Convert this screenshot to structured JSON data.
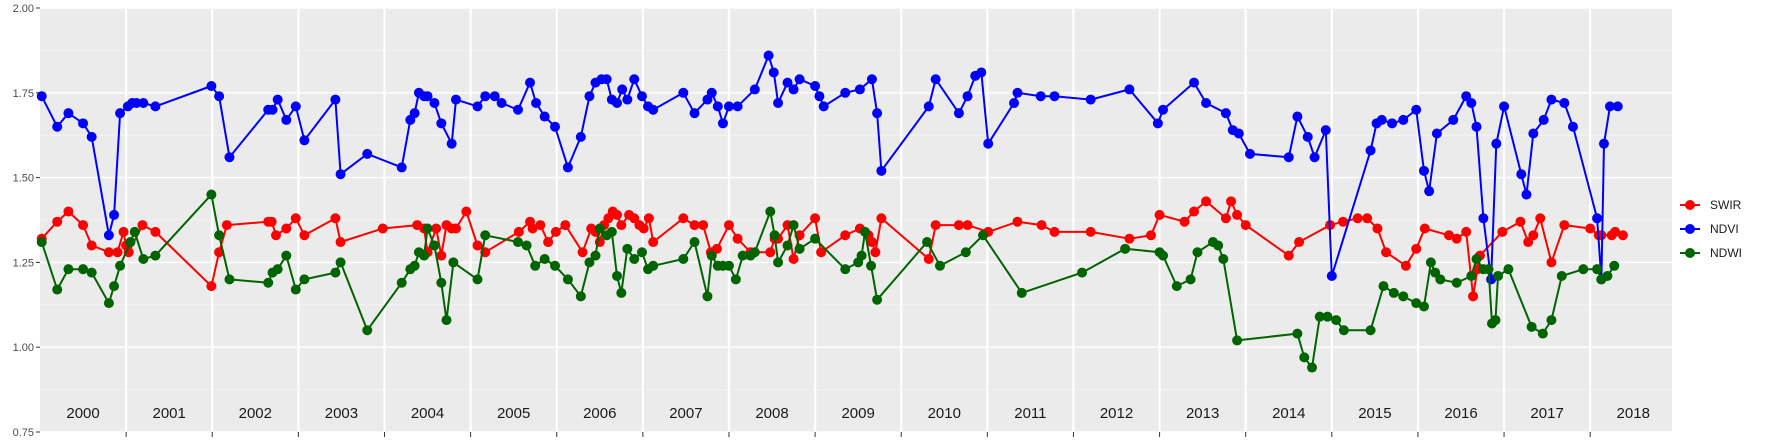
{
  "chart_data": {
    "type": "line",
    "title": "",
    "xlabel": "",
    "ylabel": "",
    "xlim": [
      2000.0,
      2018.95
    ],
    "ylim": [
      0.75,
      2.0
    ],
    "yticks": [
      0.75,
      1.0,
      1.25,
      1.5,
      1.75,
      2.0
    ],
    "ytick_labels": [
      "0.75",
      "1.00",
      "1.25",
      "1.50",
      "1.75",
      "2.00"
    ],
    "year_labels": [
      "2000",
      "2001",
      "2002",
      "2003",
      "2004",
      "2005",
      "2006",
      "2007",
      "2008",
      "2009",
      "2010",
      "2011",
      "2012",
      "2013",
      "2014",
      "2015",
      "2016",
      "2017",
      "2018"
    ],
    "grid": true,
    "legend_position": "right",
    "series": [
      {
        "name": "SWIR",
        "color": "#ff0000",
        "x": [
          2000.02,
          2000.2,
          2000.33,
          2000.5,
          2000.6,
          2000.8,
          2000.9,
          2000.97,
          2001.0,
          2001.03,
          2001.19,
          2001.34,
          2001.99,
          2002.08,
          2002.17,
          2002.65,
          2002.69,
          2002.74,
          2002.86,
          2002.97,
          2003.07,
          2003.43,
          2003.49,
          2003.98,
          2004.38,
          2004.46,
          2004.5,
          2004.6,
          2004.66,
          2004.72,
          2004.78,
          2004.83,
          2004.95,
          2005.08,
          2005.17,
          2005.56,
          2005.69,
          2005.72,
          2005.81,
          2005.9,
          2005.99,
          2006.1,
          2006.3,
          2006.4,
          2006.45,
          2006.5,
          2006.55,
          2006.6,
          2006.65,
          2006.7,
          2006.75,
          2006.84,
          2006.9,
          2006.96,
          2007.01,
          2007.07,
          2007.12,
          2007.47,
          2007.6,
          2007.7,
          2007.79,
          2007.86,
          2008.0,
          2008.1,
          2008.25,
          2008.48,
          2008.53,
          2008.57,
          2008.68,
          2008.75,
          2008.82,
          2009.0,
          2009.07,
          2009.35,
          2009.52,
          2009.62,
          2009.66,
          2009.7,
          2009.77,
          2010.32,
          2010.4,
          2010.67,
          2010.77,
          2011.01,
          2011.35,
          2011.63,
          2011.78,
          2012.2,
          2012.65,
          2012.9,
          2013.0,
          2013.29,
          2013.4,
          2013.54,
          2013.77,
          2013.83,
          2013.9,
          2014.0,
          2014.5,
          2014.62,
          2014.98,
          2015.13,
          2015.3,
          2015.41,
          2015.53,
          2015.63,
          2015.86,
          2015.98,
          2016.08,
          2016.36,
          2016.45,
          2016.56,
          2016.64,
          2016.69,
          2016.72,
          2016.98,
          2017.19,
          2017.28,
          2017.34,
          2017.42,
          2017.55,
          2017.7,
          2018.0,
          2018.1,
          2018.13,
          2018.25,
          2018.29,
          2018.38
        ],
        "values": [
          1.32,
          1.37,
          1.4,
          1.36,
          1.3,
          1.28,
          1.28,
          1.34,
          1.3,
          1.28,
          1.36,
          1.34,
          1.18,
          1.28,
          1.36,
          1.37,
          1.37,
          1.33,
          1.35,
          1.38,
          1.33,
          1.38,
          1.31,
          1.35,
          1.36,
          1.35,
          1.28,
          1.35,
          1.27,
          1.36,
          1.35,
          1.35,
          1.4,
          1.3,
          1.28,
          1.34,
          1.37,
          1.35,
          1.36,
          1.31,
          1.34,
          1.36,
          1.28,
          1.35,
          1.34,
          1.31,
          1.36,
          1.38,
          1.4,
          1.39,
          1.36,
          1.39,
          1.38,
          1.36,
          1.35,
          1.38,
          1.31,
          1.38,
          1.36,
          1.36,
          1.28,
          1.29,
          1.36,
          1.32,
          1.28,
          1.28,
          1.32,
          1.32,
          1.36,
          1.26,
          1.33,
          1.38,
          1.28,
          1.33,
          1.35,
          1.33,
          1.31,
          1.28,
          1.38,
          1.26,
          1.36,
          1.36,
          1.36,
          1.34,
          1.37,
          1.36,
          1.34,
          1.34,
          1.32,
          1.33,
          1.39,
          1.37,
          1.4,
          1.43,
          1.38,
          1.43,
          1.39,
          1.36,
          1.27,
          1.31,
          1.36,
          1.37,
          1.38,
          1.38,
          1.35,
          1.28,
          1.24,
          1.29,
          1.35,
          1.33,
          1.32,
          1.34,
          1.15,
          1.23,
          1.27,
          1.34,
          1.37,
          1.31,
          1.33,
          1.38,
          1.25,
          1.36,
          1.35,
          1.33,
          1.33,
          1.33,
          1.34,
          1.33
        ],
        "values_note": ""
      },
      {
        "name": "NDVI",
        "color": "#0000ff",
        "x": [
          2000.02,
          2000.2,
          2000.33,
          2000.5,
          2000.6,
          2000.8,
          2000.86,
          2000.93,
          2001.02,
          2001.07,
          2001.12,
          2001.2,
          2001.34,
          2001.99,
          2002.08,
          2002.2,
          2002.65,
          2002.7,
          2002.76,
          2002.86,
          2002.97,
          2003.07,
          2003.43,
          2003.49,
          2003.8,
          2004.2,
          2004.3,
          2004.35,
          2004.4,
          2004.46,
          2004.5,
          2004.58,
          2004.66,
          2004.78,
          2004.83,
          2005.08,
          2005.17,
          2005.28,
          2005.36,
          2005.55,
          2005.69,
          2005.76,
          2005.86,
          2005.98,
          2006.13,
          2006.28,
          2006.38,
          2006.45,
          2006.52,
          2006.58,
          2006.64,
          2006.7,
          2006.76,
          2006.82,
          2006.9,
          2006.99,
          2007.06,
          2007.12,
          2007.47,
          2007.6,
          2007.75,
          2007.8,
          2007.87,
          2007.93,
          2008.0,
          2008.1,
          2008.3,
          2008.46,
          2008.52,
          2008.57,
          2008.68,
          2008.75,
          2008.82,
          2009.0,
          2009.05,
          2009.1,
          2009.35,
          2009.52,
          2009.66,
          2009.72,
          2009.77,
          2010.32,
          2010.4,
          2010.67,
          2010.77,
          2010.86,
          2010.93,
          2011.01,
          2011.31,
          2011.35,
          2011.62,
          2011.78,
          2012.2,
          2012.65,
          2012.98,
          2013.04,
          2013.4,
          2013.54,
          2013.77,
          2013.85,
          2013.92,
          2014.05,
          2014.5,
          2014.6,
          2014.72,
          2014.8,
          2014.93,
          2015.0,
          2015.45,
          2015.52,
          2015.58,
          2015.7,
          2015.83,
          2015.98,
          2016.07,
          2016.13,
          2016.22,
          2016.41,
          2016.56,
          2016.62,
          2016.68,
          2016.76,
          2016.85,
          2016.91,
          2017.0,
          2017.2,
          2017.26,
          2017.34,
          2017.46,
          2017.55,
          2017.7,
          2017.8,
          2018.08,
          2018.13,
          2018.16,
          2018.23,
          2018.32
        ],
        "values": [
          1.74,
          1.65,
          1.69,
          1.66,
          1.62,
          1.33,
          1.39,
          1.69,
          1.71,
          1.72,
          1.72,
          1.72,
          1.71,
          1.77,
          1.74,
          1.56,
          1.7,
          1.7,
          1.73,
          1.67,
          1.71,
          1.61,
          1.73,
          1.51,
          1.57,
          1.53,
          1.67,
          1.69,
          1.75,
          1.74,
          1.74,
          1.72,
          1.66,
          1.6,
          1.73,
          1.71,
          1.74,
          1.74,
          1.72,
          1.7,
          1.78,
          1.72,
          1.68,
          1.65,
          1.53,
          1.62,
          1.74,
          1.78,
          1.79,
          1.79,
          1.73,
          1.72,
          1.76,
          1.73,
          1.79,
          1.74,
          1.71,
          1.7,
          1.75,
          1.69,
          1.73,
          1.75,
          1.71,
          1.66,
          1.71,
          1.71,
          1.76,
          1.86,
          1.81,
          1.72,
          1.78,
          1.76,
          1.79,
          1.77,
          1.74,
          1.71,
          1.75,
          1.76,
          1.79,
          1.69,
          1.52,
          1.71,
          1.79,
          1.69,
          1.74,
          1.8,
          1.81,
          1.6,
          1.72,
          1.75,
          1.74,
          1.74,
          1.73,
          1.76,
          1.66,
          1.7,
          1.78,
          1.72,
          1.69,
          1.64,
          1.63,
          1.57,
          1.56,
          1.68,
          1.62,
          1.56,
          1.64,
          1.21,
          1.58,
          1.66,
          1.67,
          1.66,
          1.67,
          1.7,
          1.52,
          1.46,
          1.63,
          1.67,
          1.74,
          1.72,
          1.65,
          1.38,
          1.2,
          1.6,
          1.71,
          1.51,
          1.45,
          1.63,
          1.67,
          1.73,
          1.72,
          1.65,
          1.38,
          1.2,
          1.6,
          1.71,
          1.71
        ],
        "values_note": ""
      },
      {
        "name": "NDWI",
        "color": "#006400",
        "x": [
          2000.02,
          2000.2,
          2000.33,
          2000.5,
          2000.6,
          2000.8,
          2000.86,
          2000.93,
          2001.05,
          2001.1,
          2001.2,
          2001.34,
          2001.99,
          2002.08,
          2002.2,
          2002.65,
          2002.7,
          2002.76,
          2002.86,
          2002.97,
          2003.07,
          2003.43,
          2003.49,
          2003.8,
          2004.2,
          2004.3,
          2004.35,
          2004.4,
          2004.46,
          2004.5,
          2004.58,
          2004.66,
          2004.72,
          2004.8,
          2005.08,
          2005.17,
          2005.55,
          2005.65,
          2005.75,
          2005.86,
          2005.98,
          2006.13,
          2006.28,
          2006.38,
          2006.45,
          2006.5,
          2006.58,
          2006.64,
          2006.7,
          2006.75,
          2006.82,
          2006.9,
          2006.99,
          2007.06,
          2007.12,
          2007.47,
          2007.6,
          2007.75,
          2007.8,
          2007.87,
          2007.93,
          2008.0,
          2008.08,
          2008.16,
          2008.25,
          2008.3,
          2008.48,
          2008.53,
          2008.57,
          2008.68,
          2008.75,
          2008.82,
          2009.0,
          2009.35,
          2009.5,
          2009.54,
          2009.58,
          2009.65,
          2009.72,
          2010.3,
          2010.45,
          2010.75,
          2010.95,
          2011.4,
          2012.1,
          2012.6,
          2013.0,
          2013.04,
          2013.2,
          2013.36,
          2013.44,
          2013.62,
          2013.68,
          2013.74,
          2013.9,
          2014.6,
          2014.68,
          2014.77,
          2014.86,
          2014.95,
          2015.05,
          2015.14,
          2015.45,
          2015.6,
          2015.72,
          2015.83,
          2015.98,
          2016.07,
          2016.15,
          2016.2,
          2016.26,
          2016.45,
          2016.62,
          2016.68,
          2016.76,
          2016.82,
          2016.86,
          2016.9,
          2016.93,
          2017.05,
          2017.32,
          2017.45,
          2017.55,
          2017.67,
          2017.92,
          2018.08,
          2018.13,
          2018.2,
          2018.28
        ],
        "values": [
          1.31,
          1.17,
          1.23,
          1.23,
          1.22,
          1.13,
          1.18,
          1.24,
          1.31,
          1.34,
          1.26,
          1.27,
          1.45,
          1.33,
          1.2,
          1.19,
          1.22,
          1.23,
          1.27,
          1.17,
          1.2,
          1.22,
          1.25,
          1.05,
          1.19,
          1.23,
          1.24,
          1.28,
          1.27,
          1.35,
          1.3,
          1.19,
          1.08,
          1.25,
          1.2,
          1.33,
          1.31,
          1.3,
          1.24,
          1.26,
          1.24,
          1.2,
          1.15,
          1.25,
          1.27,
          1.35,
          1.33,
          1.34,
          1.21,
          1.16,
          1.29,
          1.26,
          1.28,
          1.23,
          1.24,
          1.26,
          1.31,
          1.15,
          1.27,
          1.24,
          1.24,
          1.24,
          1.2,
          1.27,
          1.27,
          1.28,
          1.4,
          1.33,
          1.25,
          1.3,
          1.36,
          1.29,
          1.32,
          1.23,
          1.25,
          1.27,
          1.34,
          1.24,
          1.14,
          1.31,
          1.24,
          1.28,
          1.33,
          1.16,
          1.22,
          1.29,
          1.28,
          1.27,
          1.18,
          1.2,
          1.28,
          1.31,
          1.3,
          1.26,
          1.02,
          1.04,
          0.97,
          0.94,
          1.09,
          1.09,
          1.08,
          1.05,
          1.05,
          1.18,
          1.16,
          1.15,
          1.13,
          1.12,
          1.25,
          1.22,
          1.2,
          1.19,
          1.21,
          1.26,
          1.23,
          1.23,
          1.07,
          1.08,
          1.21,
          1.23,
          1.06,
          1.04,
          1.08,
          1.21,
          1.23,
          1.23,
          1.2,
          1.21,
          1.24
        ],
        "values_note": ""
      }
    ]
  }
}
